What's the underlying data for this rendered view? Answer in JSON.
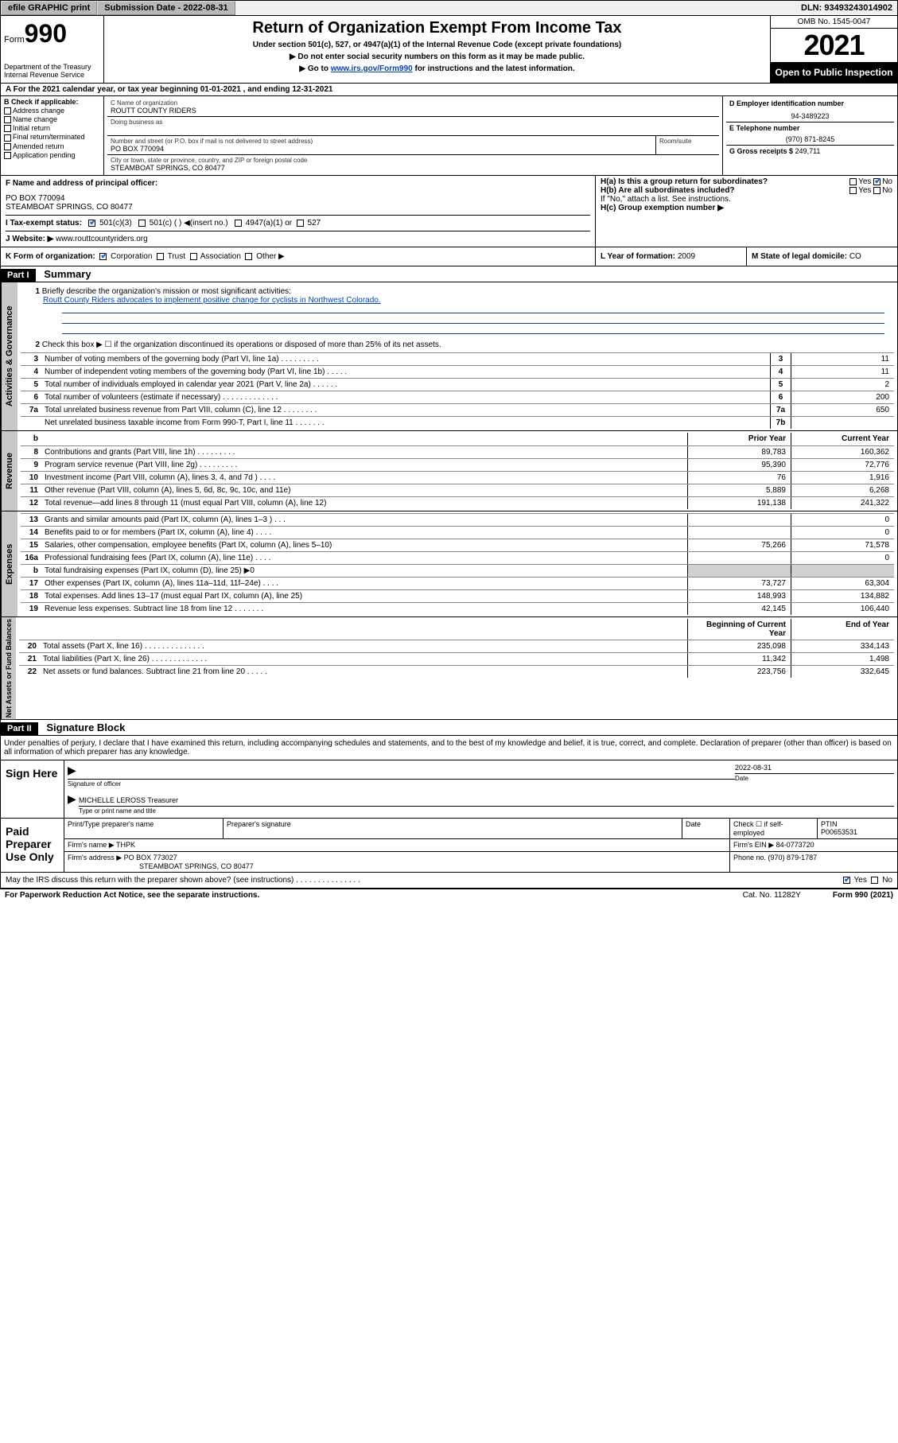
{
  "topbar": {
    "efile": "efile GRAPHIC print",
    "submission_label": "Submission Date - ",
    "submission_date": "2022-08-31",
    "dln_label": "DLN: ",
    "dln": "93493243014902"
  },
  "header": {
    "form_label": "Form",
    "form_num": "990",
    "dept": "Department of the Treasury\nInternal Revenue Service",
    "title": "Return of Organization Exempt From Income Tax",
    "subtitle": "Under section 501(c), 527, or 4947(a)(1) of the Internal Revenue Code (except private foundations)",
    "instr1": "▶ Do not enter social security numbers on this form as it may be made public.",
    "instr2_pre": "▶ Go to ",
    "instr2_link": "www.irs.gov/Form990",
    "instr2_post": " for instructions and the latest information.",
    "omb": "OMB No. 1545-0047",
    "year": "2021",
    "inspection": "Open to Public Inspection"
  },
  "section_a": "A For the 2021 calendar year, or tax year beginning 01-01-2021   , and ending 12-31-2021",
  "section_b": {
    "label": "B Check if applicable:",
    "items": [
      "Address change",
      "Name change",
      "Initial return",
      "Final return/terminated",
      "Amended return",
      "Application pending"
    ]
  },
  "section_c": {
    "name_label": "C Name of organization",
    "name": "ROUTT COUNTY RIDERS",
    "dba_label": "Doing business as",
    "addr_label": "Number and street (or P.O. box if mail is not delivered to street address)",
    "room_label": "Room/suite",
    "addr": "PO BOX 770094",
    "city_label": "City or town, state or province, country, and ZIP or foreign postal code",
    "city": "STEAMBOAT SPRINGS, CO  80477"
  },
  "section_d": {
    "label": "D Employer identification number",
    "value": "94-3489223"
  },
  "section_e": {
    "label": "E Telephone number",
    "value": "(970) 871-8245"
  },
  "section_g": {
    "label": "G Gross receipts $ ",
    "value": "249,711"
  },
  "section_f": {
    "label": "F Name and address of principal officer:",
    "addr1": "PO BOX 770094",
    "addr2": "STEAMBOAT SPRINGS, CO  80477"
  },
  "section_h": {
    "a": "H(a)  Is this a group return for subordinates?",
    "b": "H(b)  Are all subordinates included?",
    "note": "If \"No,\" attach a list. See instructions.",
    "c": "H(c)  Group exemption number ▶",
    "yes": "Yes",
    "no": "No"
  },
  "section_i": {
    "label": "I   Tax-exempt status:",
    "opt1": "501(c)(3)",
    "opt2": "501(c) (  ) ◀(insert no.)",
    "opt3": "4947(a)(1) or",
    "opt4": "527"
  },
  "section_j": {
    "label": "J   Website: ▶ ",
    "value": "www.routtcountyriders.org"
  },
  "section_k": {
    "label": "K Form of organization:",
    "opts": [
      "Corporation",
      "Trust",
      "Association",
      "Other ▶"
    ]
  },
  "section_l": {
    "label": "L Year of formation: ",
    "value": "2009"
  },
  "section_m": {
    "label": "M State of legal domicile: ",
    "value": "CO"
  },
  "part1": {
    "header": "Part I",
    "title": "Summary",
    "line1_label": "Briefly describe the organization's mission or most significant activities:",
    "line1_text": "Routt County Riders advocates to implement positive change for cyclists in Northwest Colorado.",
    "line2": "Check this box ▶ ☐  if the organization discontinued its operations or disposed of more than 25% of its net assets.",
    "gov_lines": [
      {
        "n": "3",
        "d": "Number of voting members of the governing body (Part VI, line 1a)   .    .    .    .    .    .    .    .    .",
        "b": "3",
        "v": "11"
      },
      {
        "n": "4",
        "d": "Number of independent voting members of the governing body (Part VI, line 1b)   .    .    .    .    .",
        "b": "4",
        "v": "11"
      },
      {
        "n": "5",
        "d": "Total number of individuals employed in calendar year 2021 (Part V, line 2a)   .    .    .    .    .    .",
        "b": "5",
        "v": "2"
      },
      {
        "n": "6",
        "d": "Total number of volunteers (estimate if necessary)   .    .    .    .    .    .    .    .    .    .    .    .    .",
        "b": "6",
        "v": "200"
      },
      {
        "n": "7a",
        "d": "Total unrelated business revenue from Part VIII, column (C), line 12   .    .    .    .    .    .    .    .",
        "b": "7a",
        "v": "650"
      },
      {
        "n": "",
        "d": "Net unrelated business taxable income from Form 990-T, Part I, line 11   .    .    .    .    .    .    .",
        "b": "7b",
        "v": ""
      }
    ],
    "prior_year": "Prior Year",
    "current_year": "Current Year",
    "rev_lines": [
      {
        "n": "8",
        "d": "Contributions and grants (Part VIII, line 1h)   .    .    .    .    .    .    .    .    .",
        "p": "89,783",
        "c": "160,362"
      },
      {
        "n": "9",
        "d": "Program service revenue (Part VIII, line 2g)   .    .    .    .    .    .    .    .    .",
        "p": "95,390",
        "c": "72,776"
      },
      {
        "n": "10",
        "d": "Investment income (Part VIII, column (A), lines 3, 4, and 7d )   .    .    .    .",
        "p": "76",
        "c": "1,916"
      },
      {
        "n": "11",
        "d": "Other revenue (Part VIII, column (A), lines 5, 6d, 8c, 9c, 10c, and 11e)",
        "p": "5,889",
        "c": "6,268"
      },
      {
        "n": "12",
        "d": "Total revenue—add lines 8 through 11 (must equal Part VIII, column (A), line 12)",
        "p": "191,138",
        "c": "241,322"
      }
    ],
    "exp_lines": [
      {
        "n": "13",
        "d": "Grants and similar amounts paid (Part IX, column (A), lines 1–3 )   .    .    .",
        "p": "",
        "c": "0"
      },
      {
        "n": "14",
        "d": "Benefits paid to or for members (Part IX, column (A), line 4)   .    .    .    .",
        "p": "",
        "c": "0"
      },
      {
        "n": "15",
        "d": "Salaries, other compensation, employee benefits (Part IX, column (A), lines 5–10)",
        "p": "75,266",
        "c": "71,578"
      },
      {
        "n": "16a",
        "d": "Professional fundraising fees (Part IX, column (A), line 11e)   .    .    .    .",
        "p": "",
        "c": "0"
      },
      {
        "n": "b",
        "d": "Total fundraising expenses (Part IX, column (D), line 25) ▶0",
        "p": "shade",
        "c": "shade"
      },
      {
        "n": "17",
        "d": "Other expenses (Part IX, column (A), lines 11a–11d, 11f–24e)   .    .    .    .",
        "p": "73,727",
        "c": "63,304"
      },
      {
        "n": "18",
        "d": "Total expenses. Add lines 13–17 (must equal Part IX, column (A), line 25)",
        "p": "148,993",
        "c": "134,882"
      },
      {
        "n": "19",
        "d": "Revenue less expenses. Subtract line 18 from line 12   .    .    .    .    .    .    .",
        "p": "42,145",
        "c": "106,440"
      }
    ],
    "boy": "Beginning of Current Year",
    "eoy": "End of Year",
    "net_lines": [
      {
        "n": "20",
        "d": "Total assets (Part X, line 16)  .    .    .    .    .    .    .    .    .    .    .    .    .    .",
        "p": "235,098",
        "c": "334,143"
      },
      {
        "n": "21",
        "d": "Total liabilities (Part X, line 26)   .    .    .    .    .    .    .    .    .    .    .    .    .",
        "p": "11,342",
        "c": "1,498"
      },
      {
        "n": "22",
        "d": "Net assets or fund balances. Subtract line 21 from line 20   .    .    .    .    .",
        "p": "223,756",
        "c": "332,645"
      }
    ],
    "vtabs": [
      "Activities & Governance",
      "Revenue",
      "Expenses",
      "Net Assets or Fund Balances"
    ]
  },
  "part2": {
    "header": "Part II",
    "title": "Signature Block",
    "decl": "Under penalties of perjury, I declare that I have examined this return, including accompanying schedules and statements, and to the best of my knowledge and belief, it is true, correct, and complete. Declaration of preparer (other than officer) is based on all information of which preparer has any knowledge.",
    "sign_here": "Sign Here",
    "sig_officer": "Signature of officer",
    "date": "Date",
    "sig_date": "2022-08-31",
    "officer_name": "MICHELLE LEROSS Treasurer",
    "type_name": "Type or print name and title",
    "paid": "Paid Preparer Use Only",
    "pt_name": "Print/Type preparer's name",
    "pt_sig": "Preparer's signature",
    "pt_date": "Date",
    "pt_check": "Check ☐ if self-employed",
    "ptin_label": "PTIN",
    "ptin": "P00653531",
    "firm_name_label": "Firm's name    ▶ ",
    "firm_name": "THPK",
    "firm_ein_label": "Firm's EIN ▶ ",
    "firm_ein": "84-0773720",
    "firm_addr_label": "Firm's address ▶ ",
    "firm_addr1": "PO BOX 773027",
    "firm_addr2": "STEAMBOAT SPRINGS, CO  80477",
    "phone_label": "Phone no. ",
    "phone": "(970) 879-1787",
    "may_irs": "May the IRS discuss this return with the preparer shown above? (see instructions)   .    .    .    .    .    .    .    .    .    .    .    .    .    .    .",
    "yes": "Yes",
    "no": "No"
  },
  "footer": {
    "pra": "For Paperwork Reduction Act Notice, see the separate instructions.",
    "cat": "Cat. No. 11282Y",
    "form": "Form 990 (2021)"
  },
  "colors": {
    "link": "#0645ad",
    "shade": "#d0d0d0",
    "vtab_bg": "#c8c8c8",
    "check_color": "#2864c8"
  }
}
